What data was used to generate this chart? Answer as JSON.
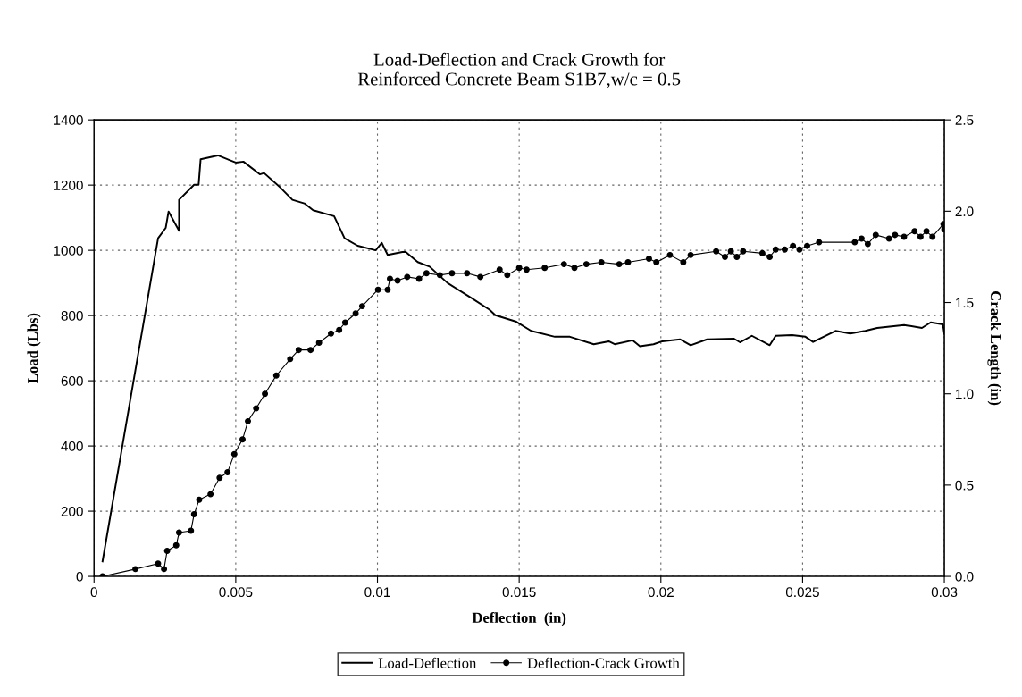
{
  "chart_data": {
    "type": "line",
    "title": "Load-Deflection and Crack Growth for\nReinforced Concrete Beam S1B7,w/c = 0.5",
    "xlabel": "Deflection  (in)",
    "ylabel": "Load (Lbs)",
    "y2label": "Crack Length (in)",
    "xlim": [
      0,
      0.03
    ],
    "xticks": [
      0,
      0.005,
      0.01,
      0.015,
      0.02,
      0.025,
      0.03
    ],
    "ylim": [
      0,
      1400
    ],
    "yticks": [
      0,
      200,
      400,
      600,
      800,
      1000,
      1200,
      1400
    ],
    "y2lim": [
      0,
      2.5
    ],
    "y2ticks": [
      {
        "value": 0,
        "label": "0.0"
      },
      {
        "value": 0.5,
        "label": "0.5"
      },
      {
        "value": 1,
        "label": "1.0"
      },
      {
        "value": 1.5,
        "label": "1.5"
      },
      {
        "value": 2,
        "label": "2.0"
      },
      {
        "value": 2.5,
        "label": "2.5"
      }
    ],
    "grid": true,
    "legend": "bottom",
    "series": [
      {
        "name": "Load-Deflection",
        "color": "#000000",
        "marker": "none",
        "x": [
          0.0003,
          0.00226,
          0.00253,
          0.00263,
          0.003,
          0.003,
          0.00353,
          0.00369,
          0.00376,
          0.00437,
          0.005,
          0.00527,
          0.00585,
          0.006,
          0.00658,
          0.007,
          0.00742,
          0.00773,
          0.00847,
          0.00884,
          0.0093,
          0.00994,
          0.01015,
          0.01036,
          0.01088,
          0.011,
          0.01142,
          0.01184,
          0.01247,
          0.01331,
          0.01395,
          0.01416,
          0.0149,
          0.01542,
          0.01626,
          0.01679,
          0.01763,
          0.01816,
          0.01837,
          0.019,
          0.01926,
          0.01974,
          0.02005,
          0.02068,
          0.02105,
          0.02163,
          0.02258,
          0.02279,
          0.02321,
          0.02384,
          0.02405,
          0.02463,
          0.0251,
          0.02537,
          0.02616,
          0.02668,
          0.02721,
          0.02763,
          0.02858,
          0.02921,
          0.02952,
          0.02995,
          0.03
        ],
        "values": [
          46,
          1037,
          1069,
          1119,
          1060,
          1155,
          1201,
          1201,
          1279,
          1291,
          1269,
          1272,
          1233,
          1237,
          1192,
          1155,
          1144,
          1123,
          1105,
          1037,
          1014,
          1000,
          1023,
          986,
          995,
          995,
          964,
          950,
          900,
          854,
          818,
          801,
          781,
          753,
          735,
          735,
          712,
          721,
          712,
          724,
          706,
          712,
          721,
          727,
          709,
          727,
          729,
          718,
          738,
          709,
          738,
          740,
          735,
          719,
          753,
          745,
          753,
          762,
          771,
          762,
          779,
          773,
          744
        ]
      },
      {
        "name": "Deflection-Crack Growth",
        "color": "#000000",
        "marker": "circle",
        "axis": "y2",
        "x": [
          0.0003,
          0.00146,
          0.00226,
          0.00247,
          0.00258,
          0.0029,
          0.003,
          0.00342,
          0.00353,
          0.00371,
          0.00411,
          0.00443,
          0.00471,
          0.00495,
          0.00524,
          0.00543,
          0.00572,
          0.00603,
          0.00643,
          0.00692,
          0.00722,
          0.00764,
          0.00794,
          0.00836,
          0.00865,
          0.00886,
          0.00923,
          0.00946,
          0.01002,
          0.01036,
          0.01044,
          0.01071,
          0.01105,
          0.01147,
          0.01173,
          0.0122,
          0.01263,
          0.01316,
          0.01363,
          0.01431,
          0.01458,
          0.015,
          0.01526,
          0.0159,
          0.01658,
          0.01695,
          0.01737,
          0.0179,
          0.01853,
          0.01884,
          0.01958,
          0.01984,
          0.02032,
          0.02079,
          0.02105,
          0.02195,
          0.02226,
          0.02247,
          0.02268,
          0.0229,
          0.02358,
          0.02384,
          0.02405,
          0.02437,
          0.02466,
          0.02489,
          0.02516,
          0.02558,
          0.02684,
          0.02708,
          0.0273,
          0.02758,
          0.02805,
          0.02826,
          0.02858,
          0.02895,
          0.02916,
          0.02937,
          0.02958,
          0.02997,
          0.03
        ],
        "values": [
          0.0,
          0.04,
          0.07,
          0.04,
          0.14,
          0.17,
          0.24,
          0.25,
          0.34,
          0.42,
          0.45,
          0.54,
          0.57,
          0.67,
          0.75,
          0.85,
          0.92,
          1.0,
          1.1,
          1.19,
          1.24,
          1.24,
          1.28,
          1.33,
          1.35,
          1.39,
          1.44,
          1.48,
          1.57,
          1.57,
          1.63,
          1.62,
          1.64,
          1.63,
          1.66,
          1.65,
          1.66,
          1.66,
          1.64,
          1.68,
          1.65,
          1.69,
          1.68,
          1.69,
          1.71,
          1.69,
          1.71,
          1.72,
          1.71,
          1.72,
          1.74,
          1.72,
          1.76,
          1.72,
          1.76,
          1.78,
          1.75,
          1.78,
          1.75,
          1.78,
          1.77,
          1.75,
          1.79,
          1.79,
          1.81,
          1.79,
          1.81,
          1.83,
          1.83,
          1.85,
          1.82,
          1.87,
          1.85,
          1.87,
          1.86,
          1.89,
          1.86,
          1.89,
          1.86,
          1.93,
          1.9
        ]
      }
    ]
  }
}
